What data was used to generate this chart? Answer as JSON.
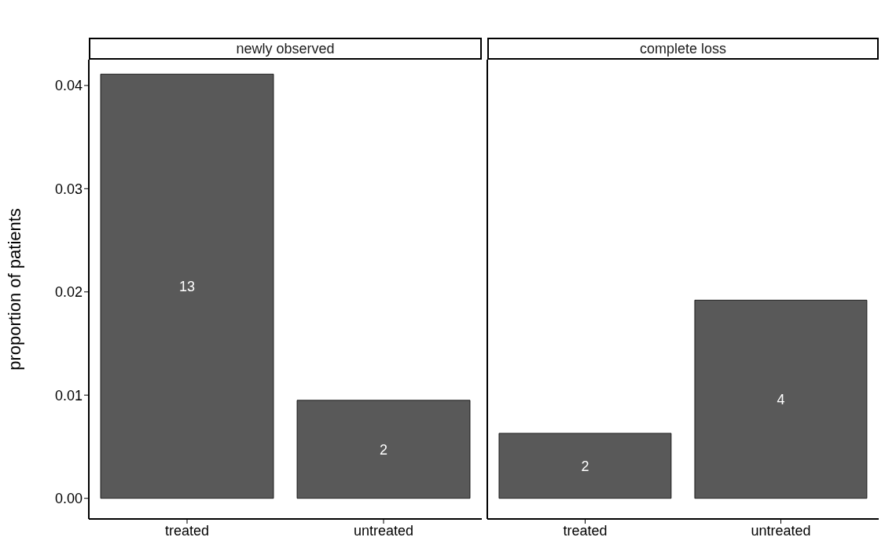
{
  "chart_data": [
    {
      "type": "bar",
      "title": "newly observed",
      "ylabel": "proportion of patients",
      "categories": [
        "treated",
        "untreated"
      ],
      "values": [
        0.0411,
        0.0095
      ],
      "color": "#595959",
      "ylim": [
        -0.002,
        0.0425
      ],
      "yticks": [
        {
          "value": 0,
          "label": "0.00"
        },
        0.01,
        0.02,
        0.03,
        0.04
      ],
      "grid": false,
      "annotations": [
        "13",
        "2"
      ]
    },
    {
      "type": "bar",
      "title": "complete loss",
      "categories": [
        "treated",
        "untreated"
      ],
      "values": [
        0.0063,
        0.0192
      ],
      "color": "#595959",
      "ylim": [
        -0.002,
        0.0425
      ],
      "grid": false,
      "tick_labels": "x",
      "annotations": [
        "2",
        "4"
      ]
    }
  ]
}
